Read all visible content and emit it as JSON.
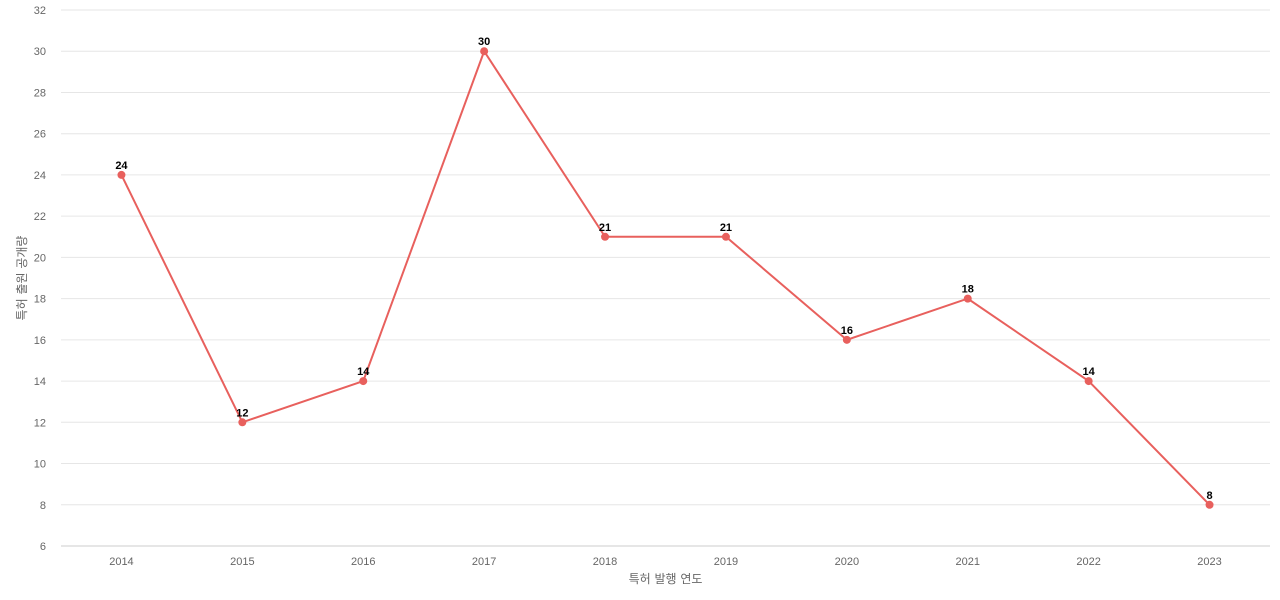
{
  "chart_data": {
    "type": "line",
    "title": "",
    "xlabel": "특허 발행 연도",
    "ylabel": "특허 출원 공개량",
    "categories": [
      "2014",
      "2015",
      "2016",
      "2017",
      "2018",
      "2019",
      "2020",
      "2021",
      "2022",
      "2023"
    ],
    "series": [
      {
        "values": [
          24,
          12,
          14,
          30,
          21,
          21,
          16,
          18,
          14,
          8
        ]
      }
    ],
    "ylim": [
      6,
      32
    ],
    "yticks": [
      6,
      8,
      10,
      12,
      14,
      16,
      18,
      20,
      22,
      24,
      26,
      28,
      30,
      32
    ],
    "grid": true,
    "data_labels": true,
    "line_color": "#e8605d",
    "grid_color": "#e6e6e6",
    "tick_color": "#666666"
  }
}
